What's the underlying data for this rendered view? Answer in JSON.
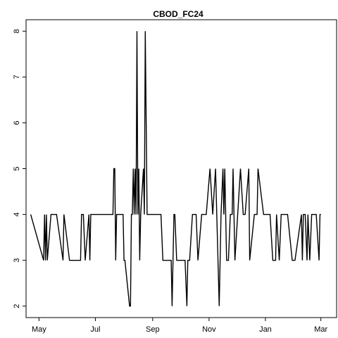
{
  "chart_data": {
    "type": "line",
    "title": "CBOD_FC24",
    "xlabel": "",
    "ylabel": "",
    "xlim": [
      "2011-04-17",
      "2012-03-18"
    ],
    "ylim": [
      1.75,
      8.25
    ],
    "y_ticks": [
      2,
      3,
      4,
      5,
      6,
      7,
      8
    ],
    "y_tick_labels": [
      "2",
      "3",
      "4",
      "5",
      "6",
      "7",
      "8"
    ],
    "x_ticks": [
      "2011-05-01",
      "2011-07-01",
      "2011-09-01",
      "2011-11-01",
      "2012-01-01",
      "2012-03-01"
    ],
    "x_tick_labels": [
      "May",
      "Jul",
      "Sep",
      "Nov",
      "Jan",
      "Mar"
    ],
    "grid": false,
    "legend": "none",
    "line_color": "#000000",
    "series": [
      {
        "x": [
          "2011-04-22",
          "2011-05-06",
          "2011-05-07",
          "2011-05-08",
          "2011-05-09",
          "2011-05-10",
          "2011-05-14",
          "2011-05-20",
          "2011-05-27",
          "2011-05-28",
          "2011-06-03",
          "2011-06-15",
          "2011-06-16",
          "2011-06-18",
          "2011-06-20",
          "2011-06-24",
          "2011-06-25",
          "2011-06-26",
          "2011-06-28",
          "2011-07-17",
          "2011-07-20",
          "2011-07-21",
          "2011-07-22",
          "2011-07-23",
          "2011-07-24",
          "2011-07-30",
          "2011-07-31",
          "2011-08-01",
          "2011-08-02",
          "2011-08-07",
          "2011-08-08",
          "2011-08-09",
          "2011-08-10",
          "2011-08-11",
          "2011-08-12",
          "2011-08-13",
          "2011-08-14",
          "2011-08-15",
          "2011-08-16",
          "2011-08-17",
          "2011-08-18",
          "2011-08-19",
          "2011-08-22",
          "2011-08-23",
          "2011-08-24",
          "2011-08-25",
          "2011-08-26",
          "2011-08-27",
          "2011-08-28",
          "2011-08-30",
          "2011-09-10",
          "2011-09-12",
          "2011-09-20",
          "2011-09-21",
          "2011-09-22",
          "2011-09-23",
          "2011-09-24",
          "2011-09-25",
          "2011-09-27",
          "2011-10-03",
          "2011-10-06",
          "2011-10-08",
          "2011-10-09",
          "2011-10-11",
          "2011-10-14",
          "2011-10-18",
          "2011-10-20",
          "2011-10-24",
          "2011-10-26",
          "2011-10-29",
          "2011-11-02",
          "2011-11-05",
          "2011-11-08",
          "2011-11-12",
          "2011-11-14",
          "2011-11-16",
          "2011-11-17",
          "2011-11-18",
          "2011-11-20",
          "2011-11-22",
          "2011-11-24",
          "2011-11-26",
          "2011-11-27",
          "2011-11-29",
          "2011-12-05",
          "2011-12-08",
          "2011-12-10",
          "2011-12-14",
          "2011-12-15",
          "2011-12-20",
          "2011-12-23",
          "2011-12-24",
          "2011-12-30",
          "2012-01-01",
          "2012-01-06",
          "2012-01-09",
          "2012-01-12",
          "2012-01-13",
          "2012-01-16",
          "2012-01-18",
          "2012-01-25",
          "2012-01-30",
          "2012-02-02",
          "2012-02-09",
          "2012-02-10",
          "2012-02-11",
          "2012-02-13",
          "2012-02-15",
          "2012-02-16",
          "2012-02-18",
          "2012-02-20",
          "2012-02-23",
          "2012-02-25",
          "2012-02-28",
          "2012-02-29",
          "2012-03-01"
        ],
        "values": [
          4,
          3,
          4,
          3,
          4,
          3,
          4,
          4,
          3,
          4,
          3,
          3,
          4,
          4,
          3,
          4,
          3,
          4,
          4,
          4,
          4,
          5,
          5,
          3,
          4,
          4,
          4,
          3,
          3,
          2,
          2,
          4,
          4,
          5,
          4,
          5,
          4,
          8,
          4,
          5,
          3,
          4,
          5,
          4,
          8,
          6,
          4,
          4,
          4,
          4,
          4,
          3,
          3,
          3,
          2,
          3,
          4,
          4,
          3,
          3,
          3,
          2,
          3,
          3,
          4,
          4,
          3,
          4,
          4,
          4,
          5,
          4,
          5,
          2,
          4,
          5,
          4,
          5,
          3,
          3,
          4,
          4,
          5,
          3,
          5,
          4,
          4,
          5,
          3,
          4,
          4,
          5,
          4,
          4,
          4,
          3,
          3,
          4,
          3,
          4,
          4,
          3,
          3,
          4,
          3,
          4,
          4,
          3,
          4,
          3,
          4,
          4,
          4,
          3,
          4,
          4
        ],
        "color": "#000000"
      }
    ]
  }
}
